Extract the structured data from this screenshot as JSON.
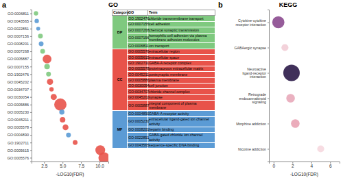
{
  "chart_data": [
    {
      "type": "scatter",
      "orientation": "horizontal",
      "marker": "circle",
      "grid": false,
      "panel_label": "a",
      "title": "GO",
      "x_label": "-LOG10(FDR)",
      "categories": [
        "GO:0006811",
        "GO:0043565",
        "GO:0022851",
        "GO:0007156",
        "GO:0008201",
        "GO:0007268",
        "GO:0005887",
        "GO:0007155",
        "GO:1902476",
        "GO:0045202",
        "GO:0034707",
        "GO:0030054",
        "GO:0005886",
        "GO:0005230",
        "GO:0045211",
        "GO:0005578",
        "GO:0004890",
        "GO:1902711",
        "GO:0005615",
        "GO:0005576"
      ],
      "values": [
        1.4,
        1.5,
        1.7,
        2.0,
        2.1,
        2.3,
        2.9,
        2.9,
        3.1,
        3.3,
        3.5,
        3.8,
        4.7,
        4.9,
        5.0,
        5.4,
        5.8,
        6.7,
        10.1,
        10.6
      ],
      "sizes": [
        5,
        5,
        4,
        6,
        6,
        6,
        20,
        8,
        6,
        10,
        5,
        10,
        40,
        7,
        8,
        9,
        6,
        6,
        25,
        32
      ],
      "colors": [
        "#7fc97f",
        "#5b9bd5",
        "#5b9bd5",
        "#7fc97f",
        "#5b9bd5",
        "#7fc97f",
        "#e8534a",
        "#7fc97f",
        "#7fc97f",
        "#e8534a",
        "#e8534a",
        "#e8534a",
        "#e8534a",
        "#5b9bd5",
        "#e8534a",
        "#e8534a",
        "#5b9bd5",
        "#e8534a",
        "#e8534a",
        "#e8534a"
      ],
      "xlim": [
        0.8,
        11.2
      ],
      "xticks": [
        2.5,
        {
          "value": 5,
          "label": "5.0"
        },
        7.5,
        {
          "value": 10,
          "label": "10.0"
        }
      ]
    },
    {
      "type": "scatter",
      "orientation": "horizontal",
      "marker": "circle",
      "grid": false,
      "panel_label": "b",
      "title": "KEGG",
      "x_label": "-LOG10(FDR)",
      "categories": [
        "Cytokine-cytokine receptor interaction",
        "GABAergic synapse",
        "Neuroactive ligand-receptor interaction",
        "Retrograde endocannabinoid signaling",
        "Morphine addiction",
        "Nicotine addiction"
      ],
      "values": [
        0.5,
        1.2,
        1.9,
        1.8,
        2.3,
        5.0
      ],
      "sizes": [
        12,
        4,
        22,
        6,
        6,
        4
      ],
      "colors": [
        "#8b4a8f",
        "#f2cdd6",
        "#2b1a48",
        "#e8a9b9",
        "#e9a3b4",
        "#f6d8df"
      ],
      "xlim": [
        -0.5,
        7
      ],
      "xticks": [
        0,
        2,
        4,
        6
      ]
    }
  ],
  "table": {
    "header": [
      "Category",
      "GO",
      "Term"
    ],
    "groups": [
      {
        "category": "BP",
        "color": "#7fc97f",
        "rows": [
          [
            "GO:1902476",
            "chloride transmembrane transport"
          ],
          [
            "GO:0007155",
            "cell adhesion"
          ],
          [
            "GO:0007268",
            "chemical synaptic transmission"
          ],
          [
            "GO:0007156",
            "homophilic cell adhesion via plasma membrane adhesion molecules"
          ],
          [
            "GO:0006811",
            "ion transport"
          ]
        ]
      },
      {
        "category": "CC",
        "color": "#e8534a",
        "rows": [
          [
            "GO:0005576",
            "extracellular region"
          ],
          [
            "GO:0005615",
            "extracellular space"
          ],
          [
            "GO:1902711",
            "GABA-A receptor complex"
          ],
          [
            "GO:0005578",
            "proteinaceous extracellular matrix"
          ],
          [
            "GO:0045211",
            "postsynaptic membrane"
          ],
          [
            "GO:0005886",
            "plasma membrane"
          ],
          [
            "GO:0030054",
            "cell junction"
          ],
          [
            "GO:0034707",
            "chloride channel complex"
          ],
          [
            "GO:0045202",
            "synapse"
          ],
          [
            "GO:0005887",
            "integral component of plasma membrane"
          ]
        ]
      },
      {
        "category": "MF",
        "color": "#5b9bd5",
        "rows": [
          [
            "GO:0004890",
            "GABA-A receptor activity"
          ],
          [
            "GO:0005230",
            "extracellular ligand-gated ion channel activity"
          ],
          [
            "GO:0008201",
            "heparin binding"
          ],
          [
            "GO:0022851",
            "GABA-gated chloride ion channel activity"
          ],
          [
            "GO:0043565",
            "sequence-specific DNA binding"
          ]
        ]
      }
    ]
  }
}
